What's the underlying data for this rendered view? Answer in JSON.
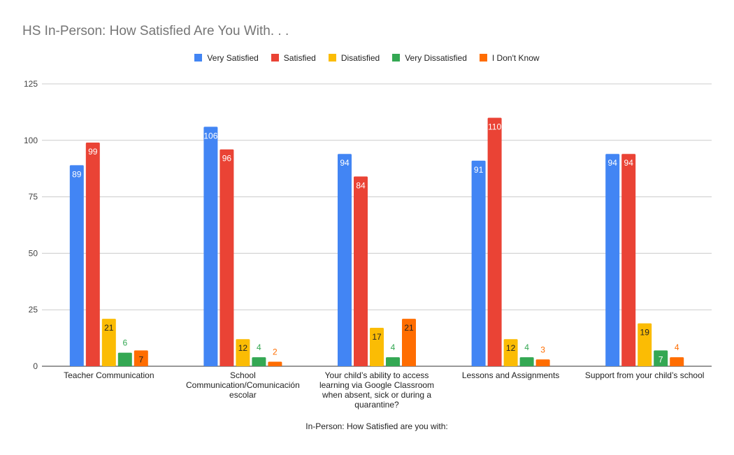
{
  "chart_data": {
    "type": "bar",
    "title": "HS In-Person: How Satisfied Are You With. . .",
    "xlabel": "In-Person: How Satisfied are you with:",
    "ylabel": "",
    "ylim": [
      0,
      125
    ],
    "yticks": [
      0,
      25,
      50,
      75,
      100,
      125
    ],
    "grid": true,
    "legend_position": "top",
    "categories": [
      [
        "Teacher Communication"
      ],
      [
        "School",
        "Communication/Comunicación",
        "escolar"
      ],
      [
        "Your child’s ability to access",
        "learning via Google Classroom",
        "when absent, sick or during a",
        "quarantine?"
      ],
      [
        "Lessons and Assignments"
      ],
      [
        "Support from your child’s school"
      ]
    ],
    "series": [
      {
        "name": "Very Satisfied",
        "color": "#4285f4",
        "values": [
          89,
          106,
          94,
          91,
          94
        ]
      },
      {
        "name": "Satisfied",
        "color": "#ea4335",
        "values": [
          99,
          96,
          84,
          110,
          94
        ]
      },
      {
        "name": "Disatisfied",
        "color": "#fbbc04",
        "values": [
          21,
          12,
          17,
          12,
          19
        ]
      },
      {
        "name": "Very Dissatisfied",
        "color": "#34a853",
        "values": [
          6,
          4,
          4,
          4,
          7
        ]
      },
      {
        "name": "I Don't Know",
        "color": "#ff6d01",
        "values": [
          7,
          2,
          21,
          3,
          4
        ]
      }
    ]
  }
}
